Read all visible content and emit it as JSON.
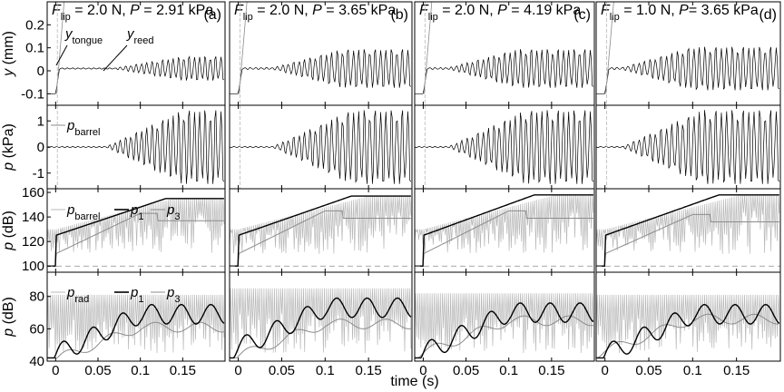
{
  "column_titles": [
    {
      "f": "F",
      "f_sub": "lip",
      "rest": " = 2.0 N, ",
      "p": "P",
      "rest2": " = 2.91 kPa"
    },
    {
      "f": "F",
      "f_sub": "lip",
      "rest": " = 2.0 N, ",
      "p": "P",
      "rest2": " = 3.65 kPa"
    },
    {
      "f": "F",
      "f_sub": "lip",
      "rest": " = 2.0 N, ",
      "p": "P",
      "rest2": " = 4.19 kPa"
    },
    {
      "f": "F",
      "f_sub": "lip",
      "rest": " = 1.0 N, ",
      "p": "P",
      "rest2": "= 3.65 kPa"
    }
  ],
  "panel_labels": [
    "(a)",
    "(b)",
    "(c)",
    "(d)"
  ],
  "row_ylabels": [
    {
      "main": "y",
      "unit": " (mm)"
    },
    {
      "main": "p",
      "unit": " (kPa)"
    },
    {
      "main": "p",
      "unit": " (dB)"
    },
    {
      "main": "p",
      "unit": " (dB)"
    }
  ],
  "xlabel": "time (s)",
  "annotations": {
    "y_tongue": {
      "main": "y",
      "sub": "tongue"
    },
    "y_reed": {
      "main": "y",
      "sub": "reed"
    }
  },
  "legends": {
    "row2": [
      {
        "main": "p",
        "sub": "barrel"
      }
    ],
    "row3": [
      {
        "main": "p",
        "sub": "barrel"
      },
      {
        "main": "p",
        "sub": "1"
      },
      {
        "main": "p",
        "sub": "3"
      }
    ],
    "row4": [
      {
        "main": "p",
        "sub": "rad"
      },
      {
        "main": "p",
        "sub": "1"
      },
      {
        "main": "p",
        "sub": "3"
      }
    ]
  },
  "colors": {
    "black": "#000000",
    "gray": "#8c8c8c",
    "light_gray": "#b8b8b8"
  },
  "chart_data": [
    {
      "type": "line",
      "panel": "row1",
      "ylabel": "y (mm)",
      "ylim": [
        -0.15,
        0.3
      ],
      "yticks": [
        -0.1,
        0,
        0.1,
        0.2
      ],
      "xlim": [
        -0.01,
        0.2
      ],
      "xticks": [
        0,
        0.05,
        0.1,
        0.15
      ],
      "series": [
        {
          "name": "y_tongue",
          "note": "steep rise near t=0"
        },
        {
          "name": "y_reed",
          "envelope_peak_by_column": [
            0.05,
            0.08,
            0.08,
            0.09
          ],
          "onset_by_column": [
            0.07,
            0.04,
            0.03,
            0.02
          ],
          "baseline": 0.01
        }
      ]
    },
    {
      "type": "line",
      "panel": "row2",
      "ylabel": "p (kPa)",
      "ylim": [
        -1.6,
        1.6
      ],
      "yticks": [
        -1,
        0,
        1
      ],
      "series": [
        {
          "name": "p_barrel",
          "envelope_peak_by_column": [
            1.4,
            1.4,
            1.4,
            1.4
          ],
          "onset_by_column": [
            0.06,
            0.04,
            0.03,
            0.02
          ]
        }
      ]
    },
    {
      "type": "line",
      "panel": "row3",
      "ylabel": "p (dB)",
      "ylim": [
        95,
        163
      ],
      "yticks": [
        100,
        120,
        140,
        160
      ],
      "series": [
        {
          "name": "p_barrel",
          "note": "light gray oscillation"
        },
        {
          "name": "p_1",
          "plateau_by_column": [
            155,
            157,
            158,
            158
          ]
        },
        {
          "name": "p_3",
          "plateau_by_column": [
            135,
            137,
            137,
            134
          ]
        }
      ],
      "reference_line": 100
    },
    {
      "type": "line",
      "panel": "row4",
      "ylabel": "p (dB)",
      "ylim": [
        40,
        95
      ],
      "yticks": [
        40,
        60,
        80
      ],
      "series": [
        {
          "name": "p_rad",
          "note": "light gray oscillation"
        },
        {
          "name": "p_1",
          "plateau_by_column": [
            69,
            73,
            70,
            69
          ]
        },
        {
          "name": "p_3",
          "plateau_by_column": [
            61,
            63,
            65,
            66
          ]
        }
      ]
    }
  ]
}
